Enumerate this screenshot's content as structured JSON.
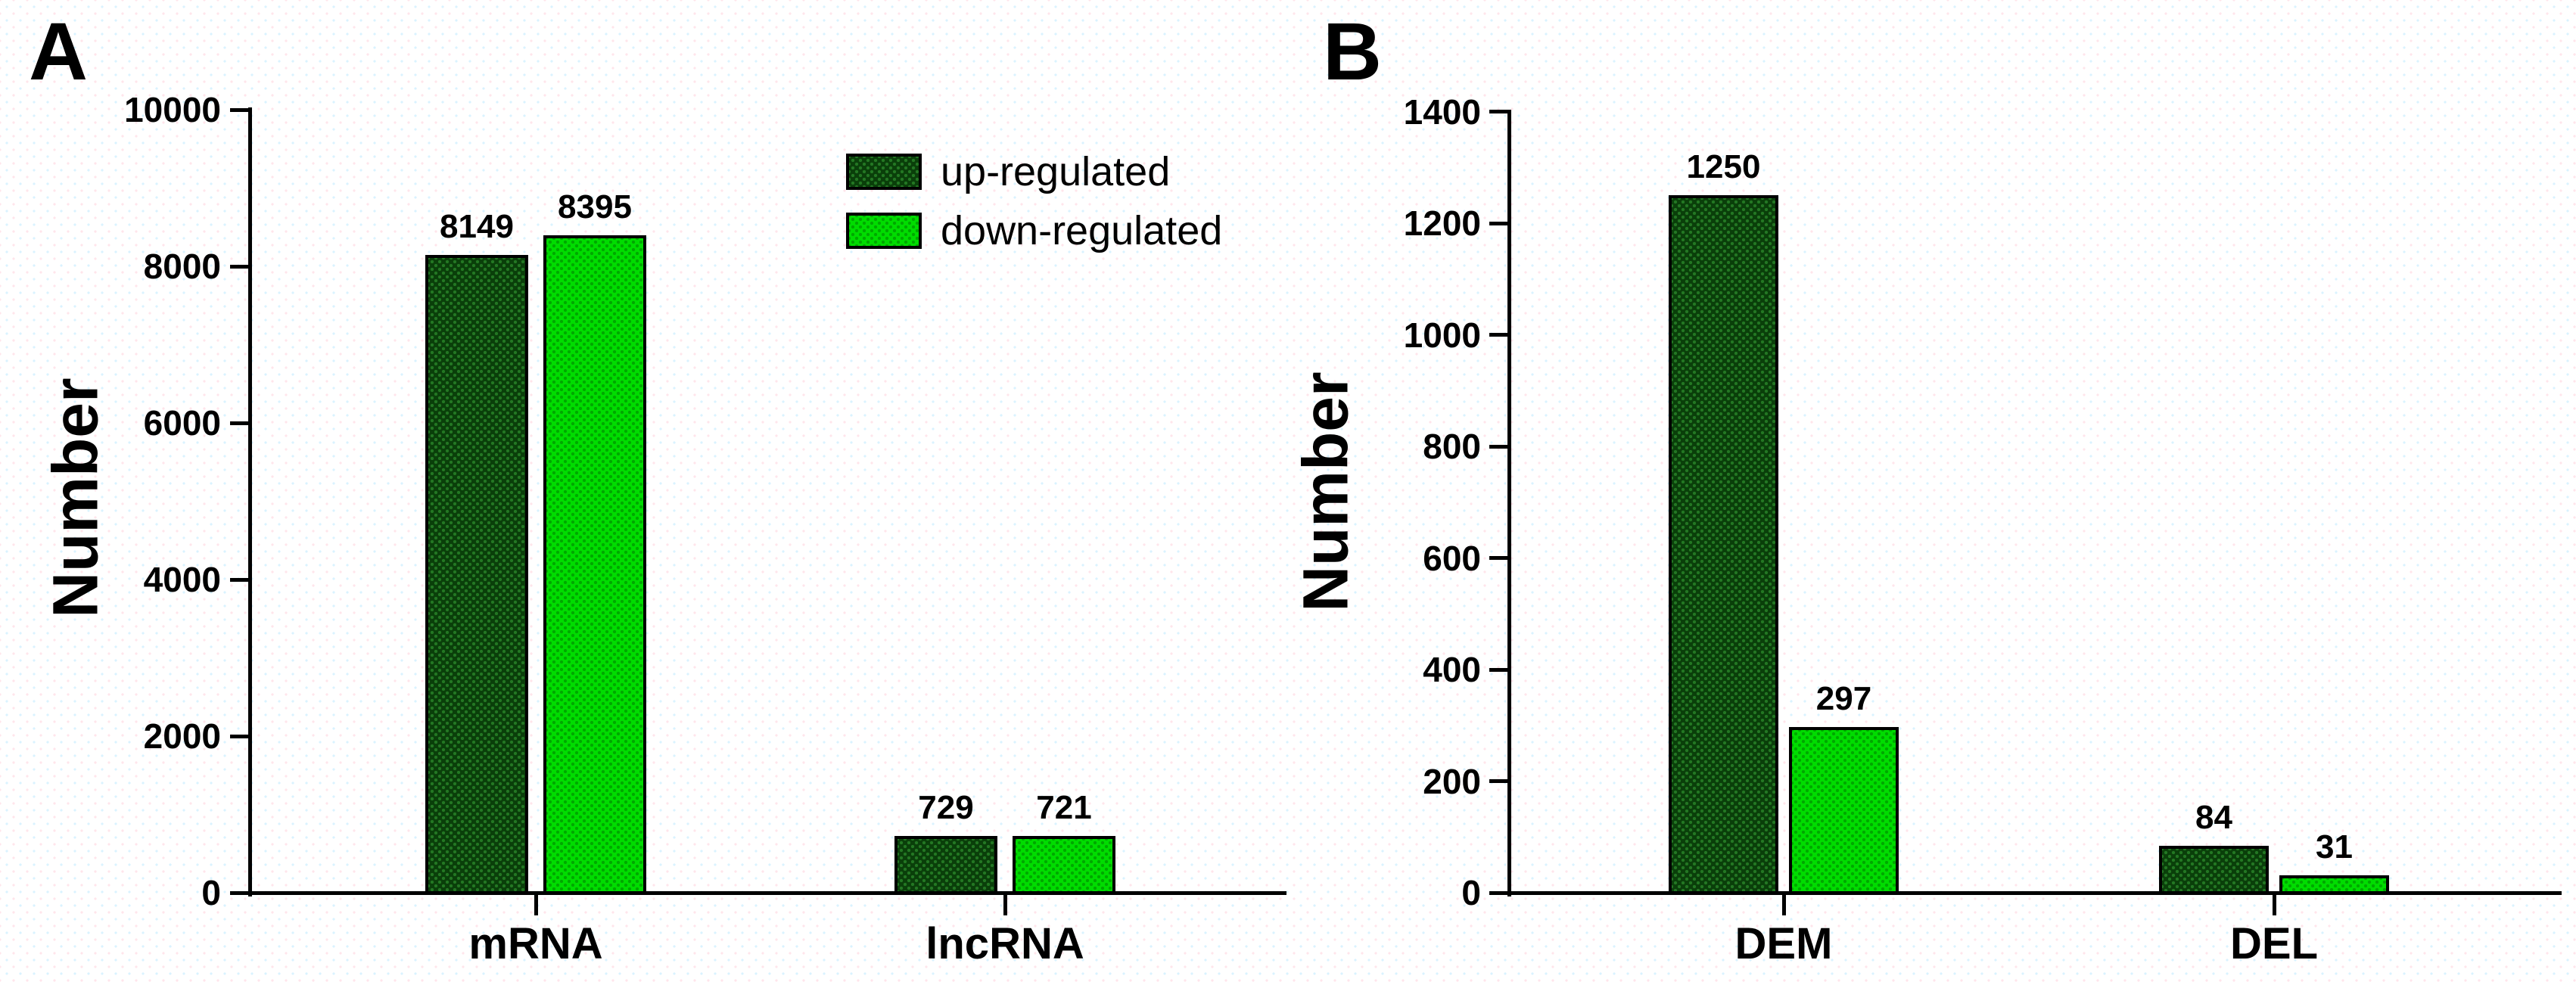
{
  "figure": {
    "background": "#ffffff",
    "panels": [
      {
        "letter": "A",
        "y_axis_title": "Number"
      },
      {
        "letter": "B",
        "y_axis_title": "Number"
      }
    ]
  },
  "legend": {
    "items": [
      {
        "label": "up-regulated",
        "series": "up"
      },
      {
        "label": "down-regulated",
        "series": "down"
      }
    ]
  },
  "colors": {
    "up_fill": "#0a3f0a",
    "up_dot": "#237723",
    "down_fill": "#00dc00",
    "down_dot": "#00a800",
    "axis": "#000000"
  },
  "chart_data": [
    {
      "type": "bar",
      "panel": "A",
      "categories": [
        "mRNA",
        "lncRNA"
      ],
      "series": [
        {
          "name": "up-regulated",
          "values": [
            8149,
            729
          ]
        },
        {
          "name": "down-regulated",
          "values": [
            8395,
            721
          ]
        }
      ],
      "ylabel": "Number",
      "xlabel": "",
      "ylim": [
        0,
        10000
      ],
      "ytick_step": 2000,
      "ytick_labels": [
        "0",
        "2000",
        "4000",
        "6000",
        "8000",
        "10000"
      ],
      "grid": false,
      "bar_value_labels": true,
      "legend_position": "top-right-inside"
    },
    {
      "type": "bar",
      "panel": "B",
      "categories": [
        "DEM",
        "DEL"
      ],
      "series": [
        {
          "name": "up-regulated",
          "values": [
            1250,
            84
          ]
        },
        {
          "name": "down-regulated",
          "values": [
            297,
            31
          ]
        }
      ],
      "ylabel": "Number",
      "xlabel": "",
      "ylim": [
        0,
        1400
      ],
      "ytick_step": 200,
      "ytick_labels": [
        "0",
        "200",
        "400",
        "600",
        "800",
        "1000",
        "1200",
        "1400"
      ],
      "grid": false,
      "bar_value_labels": true,
      "legend_position": "none"
    }
  ]
}
